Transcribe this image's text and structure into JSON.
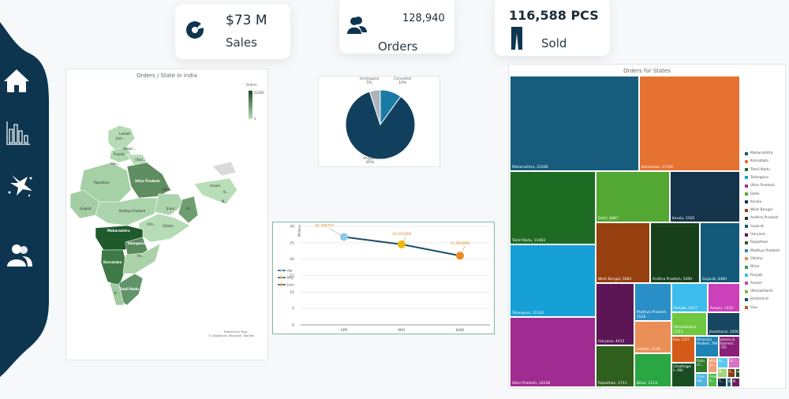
{
  "sidebar": {
    "items": [
      {
        "name": "home",
        "icon": "home-icon"
      },
      {
        "name": "charts",
        "icon": "bar-chart-icon"
      },
      {
        "name": "splash",
        "icon": "splash-icon"
      },
      {
        "name": "users",
        "icon": "users-icon"
      }
    ],
    "color": "#0d3550"
  },
  "kpis": {
    "sales": {
      "value": "$73 M",
      "label": "Sales",
      "icon": "donut-chart-icon"
    },
    "orders": {
      "value": "128,940",
      "label": "Orders",
      "icon": "users-icon"
    },
    "sold": {
      "value": "116,588 PCS",
      "label": "Sold",
      "icon": "trousers-icon"
    }
  },
  "map": {
    "title": "Orders / State in india",
    "legend_title": "Orders",
    "legend_max": "22260",
    "legend_min": "1",
    "labels": [
      "Ladakh",
      "Jam...",
      "Himac...",
      "Punjab",
      "Uttar...",
      "Har...",
      "Rajasthan",
      "Uttar Pradesh",
      "Bihar",
      "Assam",
      "N...",
      "M...",
      "Gujarat",
      "Madhya Pradesh",
      "Jhark...",
      "W...",
      "Chh...",
      "Odisha",
      "Maharashtra",
      "Telangana",
      "An...",
      "Karnataka",
      "Tamil Nadu",
      "K..."
    ],
    "attribution_1": "Powered by Bing",
    "attribution_2": "© GeoNames, Microsoft, TomTom"
  },
  "chart_data": [
    {
      "type": "pie",
      "title": "",
      "slices": [
        {
          "label": "Cancelled",
          "pct_label": "10%",
          "value": 10,
          "color": "#1a7aa6"
        },
        {
          "label": "Shipped",
          "pct_label": "85%",
          "value": 85,
          "color": "#10405e"
        },
        {
          "label": "Unshipped",
          "pct_label": "5%",
          "value": 5,
          "color": "#a9b4bc"
        }
      ]
    },
    {
      "type": "line",
      "ylabel": "Millions",
      "categories": [
        "APR",
        "MAY",
        "JUNE"
      ],
      "values": [
        26.768757,
        24.502068,
        21.063088
      ],
      "data_labels": [
        "26.768757",
        "24.502068",
        "21.063088"
      ],
      "ylim": [
        0,
        30
      ],
      "yticks": [
        "0",
        "5",
        "10",
        "15",
        "20",
        "25",
        "30"
      ],
      "point_colors": [
        "#8ecae6",
        "#f2b705",
        "#ee8a1d"
      ],
      "line_color": "#17506b",
      "legend": [
        "Apr",
        "May",
        "June"
      ],
      "legend_position": "left",
      "grid": true
    },
    {
      "type": "treemap",
      "title": "Orders for States",
      "items": [
        {
          "label": "Maharashtra, 22260",
          "state": "Maharashtra",
          "value": 22260,
          "color": "#175c7c"
        },
        {
          "label": "Karnataka, 17326",
          "state": "Karnataka",
          "value": 17326,
          "color": "#e57231"
        },
        {
          "label": "Tamil Nadu, 11483",
          "state": "Tamil Nadu",
          "value": 11483,
          "color": "#1e6b24"
        },
        {
          "label": "Delhi, 6867",
          "state": "Delhi",
          "value": 6867,
          "color": "#52a832"
        },
        {
          "label": "Kerala, 5565",
          "state": "Kerala",
          "value": 5565,
          "color": "#13344a"
        },
        {
          "label": "Telangana, 11320",
          "state": "Telangana",
          "value": 11320,
          "color": "#16a0d6"
        },
        {
          "label": "Uttar Pradesh, 10238",
          "state": "Uttar Pradesh",
          "value": 10238,
          "color": "#a12c91"
        },
        {
          "label": "West Bengal, 5883",
          "state": "West Bengal",
          "value": 5883,
          "color": "#96400f"
        },
        {
          "label": "Andhra Pradesh, 5490",
          "state": "Andhra Pradesh",
          "value": 5490,
          "color": "#17401a"
        },
        {
          "label": "Gujarat, 4460",
          "state": "Gujarat",
          "value": 4460,
          "color": "#135a7a"
        },
        {
          "label": "Haryana, 4415",
          "state": "Haryana",
          "value": 4415,
          "color": "#5c1656"
        },
        {
          "label": "Rajasthan, 2711",
          "state": "Rajasthan",
          "value": 2711,
          "color": "#2f5f1c"
        },
        {
          "label": "Madhya Pradesh, 2528",
          "state": "Madhya Pradesh",
          "value": 2528,
          "color": "#2a8fc6"
        },
        {
          "label": "Odisha, 2130",
          "state": "Odisha",
          "value": 2130,
          "color": "#ea8f58"
        },
        {
          "label": "Bihar, 2114",
          "state": "Bihar",
          "value": 2114,
          "color": "#2aa642"
        },
        {
          "label": "Punjab, 1917",
          "state": "Punjab",
          "value": 1917,
          "color": "#3dbdee"
        },
        {
          "label": "Assam, 1552",
          "state": "Assam",
          "value": 1552,
          "color": "#cc40b9"
        },
        {
          "label": "Uttarakhand, 1553",
          "state": "Uttarakhand",
          "value": 1553,
          "color": "#6fc83f"
        },
        {
          "label": "Jharkhand, 1456",
          "state": "Jharkhand",
          "value": 1456,
          "color": "#174760"
        },
        {
          "label": "Goa, 1127",
          "state": "Goa",
          "value": 1127,
          "color": "#d45a17"
        },
        {
          "label": "Chhattisgar h, 900",
          "state": "Chhattisgarh",
          "value": 900,
          "color": "#1a4d22"
        },
        {
          "label": "Himachal Pradesh, 788",
          "state": "Himachal Pradesh",
          "value": 788,
          "color": "#1d84b5"
        },
        {
          "label": "Jammu & Kashmir, 750",
          "state": "Jammu & Kashmir",
          "value": 750,
          "color": "#8a1f77"
        },
        {
          "label": "Pudu ch...",
          "color": "#2f7a2c"
        },
        {
          "label": "Man ip...",
          "color": "#ef9f7a"
        },
        {
          "label": "N...",
          "color": "#5cc8f0"
        },
        {
          "label": "Si...",
          "color": "#d970c8"
        },
        {
          "label": "Chan dig...",
          "color": "#4ab5e0"
        },
        {
          "label": "Arun a...",
          "color": "#4dbb4a"
        },
        {
          "label": "M...",
          "color": "#9ed67a"
        },
        {
          "label": "A...",
          "color": "#8a3a10"
        },
        {
          "label": "N",
          "color": "#1f4a1f"
        },
        {
          "label": "T...",
          "color": "#15303f"
        },
        {
          "label": "N",
          "color": "#1c5f80"
        },
        {
          "label": "N",
          "color": "#6a1f5e"
        }
      ],
      "legend": [
        "Maharashtra",
        "Karnataka",
        "Tamil Nadu",
        "Telangana",
        "Uttar Pradesh",
        "Delhi",
        "Kerala",
        "West Bengal",
        "Andhra Pradesh",
        "Gujarat",
        "Haryana",
        "Rajasthan",
        "Madhya Pradesh",
        "Odisha",
        "Bihar",
        "Punjab",
        "Assam",
        "Uttarakhand",
        "Jharkhand",
        "Goa"
      ],
      "legend_colors": [
        "#175c7c",
        "#e57231",
        "#1e6b24",
        "#16a0d6",
        "#a12c91",
        "#52a832",
        "#13344a",
        "#96400f",
        "#17401a",
        "#135a7a",
        "#5c1656",
        "#2f5f1c",
        "#2a8fc6",
        "#ea8f58",
        "#2aa642",
        "#3dbdee",
        "#cc40b9",
        "#6fc83f",
        "#174760",
        "#d45a17"
      ],
      "legend_position": "right"
    }
  ]
}
